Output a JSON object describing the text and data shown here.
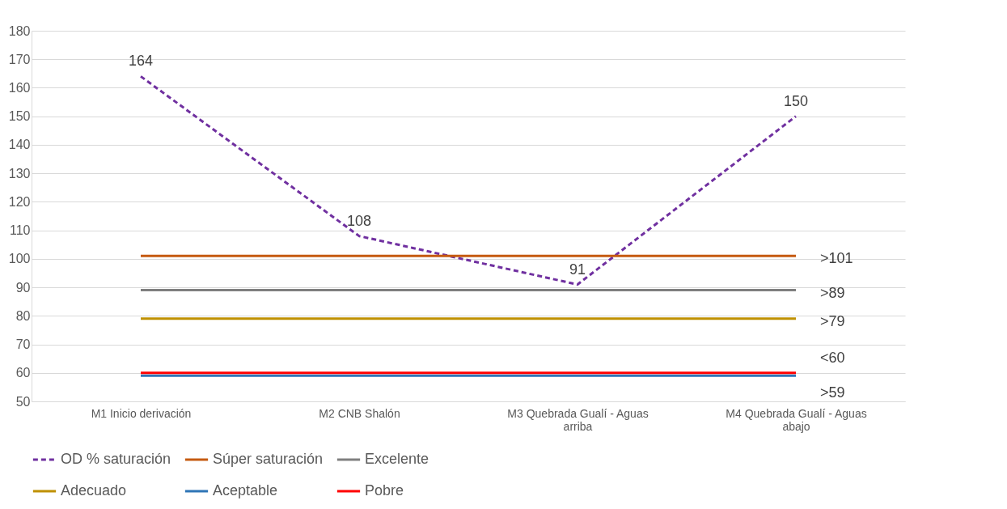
{
  "chart_data": {
    "type": "line",
    "categories": [
      "M1 Inicio derivación",
      "M2 CNB Shalón",
      "M3 Quebrada Gualí - Aguas arriba",
      "M4 Quebrada Gualí - Aguas abajo"
    ],
    "series": [
      {
        "name": "OD % saturación",
        "color": "#7030a0",
        "line_style": "dashed",
        "values": [
          164,
          108,
          91,
          150
        ],
        "value_labels": [
          "164",
          "108",
          "91",
          "150"
        ]
      },
      {
        "name": "Súper saturación",
        "color": "#c55a11",
        "values": [
          101,
          101,
          101,
          101
        ],
        "value_labels": [
          null,
          null,
          null,
          ">101"
        ]
      },
      {
        "name": "Excelente",
        "color": "#7f7f7f",
        "values": [
          89,
          89,
          89,
          89
        ],
        "value_labels": [
          null,
          null,
          null,
          ">89"
        ]
      },
      {
        "name": "Adecuado",
        "color": "#bf9000",
        "values": [
          79,
          79,
          79,
          79
        ],
        "value_labels": [
          null,
          null,
          null,
          ">79"
        ]
      },
      {
        "name": "Aceptable",
        "color": "#2e75b6",
        "values": [
          59,
          59,
          59,
          59
        ],
        "value_labels": [
          null,
          null,
          null,
          ">59"
        ]
      },
      {
        "name": "Pobre",
        "color": "#ff0000",
        "values": [
          60,
          60,
          60,
          60
        ],
        "value_labels": [
          null,
          null,
          null,
          "<60"
        ]
      }
    ],
    "ylim": [
      50,
      180
    ],
    "yticks": [
      50,
      60,
      70,
      80,
      90,
      100,
      110,
      120,
      130,
      140,
      150,
      160,
      170,
      180
    ],
    "grid": "y",
    "legend": "bottom",
    "marker": "none",
    "line_style": "solid"
  }
}
